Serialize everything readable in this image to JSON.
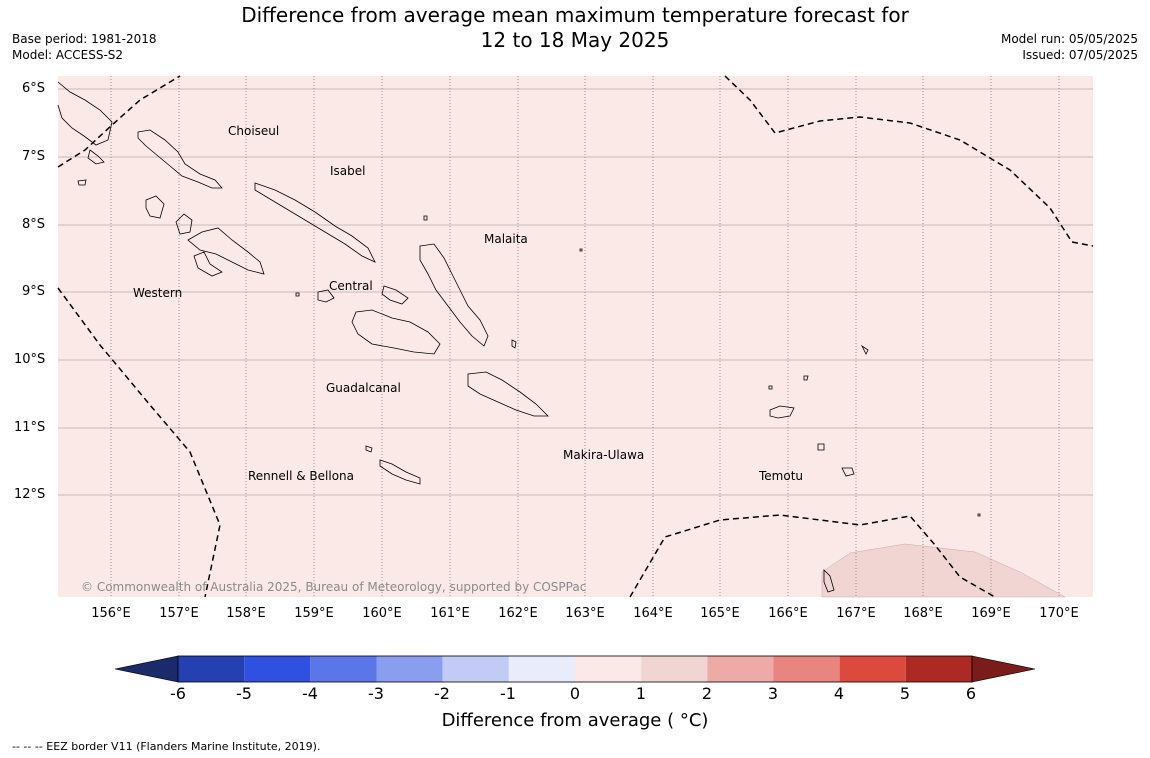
{
  "header": {
    "title_line1": "Difference from average mean maximum temperature forecast for",
    "title_line2": "12 to 18 May 2025",
    "base_period": "Base period: 1981-2018",
    "model": "Model: ACCESS-S2",
    "model_run": "Model run: 05/05/2025",
    "issued": "Issued: 07/05/2025"
  },
  "map": {
    "background_color": "#fbe9e8",
    "warm_patch_color": "#f1d5d2",
    "lat_labels": [
      "6°S",
      "7°S",
      "8°S",
      "9°S",
      "10°S",
      "11°S",
      "12°S"
    ],
    "lon_labels": [
      "156°E",
      "157°E",
      "158°E",
      "159°E",
      "160°E",
      "161°E",
      "162°E",
      "163°E",
      "164°E",
      "165°E",
      "166°E",
      "167°E",
      "168°E",
      "169°E",
      "170°E"
    ],
    "regions": {
      "choiseul": "Choiseul",
      "isabel": "Isabel",
      "malaita": "Malaita",
      "western": "Western",
      "central": "Central",
      "guadalcanal": "Guadalcanal",
      "makira_ulawa": "Makira-Ulawa",
      "rennell_bellona": "Rennell & Bellona",
      "temotu": "Temotu"
    },
    "copyright": "© Commonwealth of Australia 2025, Bureau of Meteorology, supported by COSPPac"
  },
  "colorbar": {
    "ticks": [
      "-6",
      "-5",
      "-4",
      "-3",
      "-2",
      "-1",
      "0",
      "1",
      "2",
      "3",
      "4",
      "5",
      "6"
    ],
    "colors": [
      "#1b2a6b",
      "#2540b0",
      "#2f50e0",
      "#5a76e8",
      "#8a9ef0",
      "#c2cbf5",
      "#e8ecfb",
      "#fbe9e8",
      "#f1d5d2",
      "#eeaaa6",
      "#e8857e",
      "#dc4a3e",
      "#ad2a24",
      "#7a1d1a"
    ],
    "label": "Difference from average ( °C)"
  },
  "footnote": "--  --  -- EEZ border V11 (Flanders Marine Institute, 2019)."
}
